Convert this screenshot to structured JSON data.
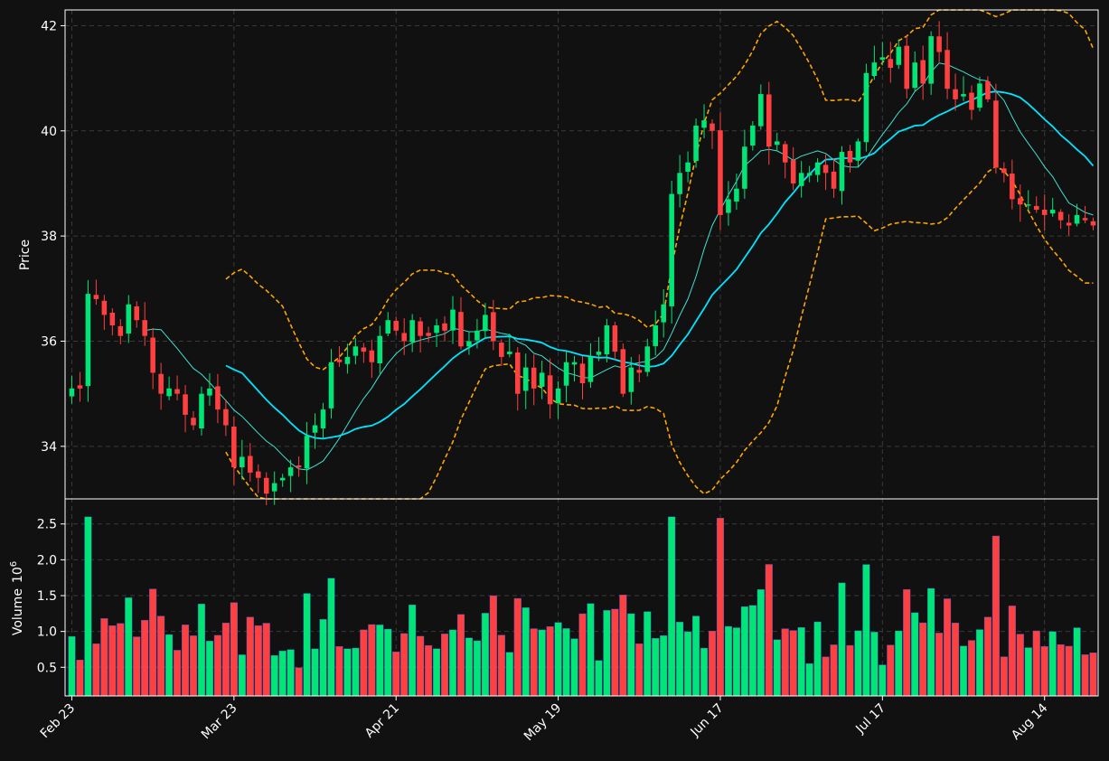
{
  "chart_data": {
    "type": "candlestick",
    "colors": {
      "background": "#111111",
      "up": "#00e676",
      "down": "#ff4040",
      "ma_fast": "#40e0d0",
      "ma_slow": "#00e5ff",
      "bollinger": "#ffa500",
      "grid": "#3a3a3a",
      "text": "#ffffff"
    },
    "price_axis": {
      "label": "Price",
      "ylim": [
        33.0,
        42.3
      ],
      "ticks": [
        "34",
        "36",
        "38",
        "40",
        "42"
      ],
      "tick_values": [
        34,
        36,
        38,
        40,
        42
      ]
    },
    "volume_axis": {
      "label": "Volume",
      "exponent_label": "10",
      "exponent": "6",
      "ylim": [
        0.1,
        2.85
      ],
      "ticks": [
        "0.5",
        "1.0",
        "1.5",
        "2.0",
        "2.5"
      ],
      "tick_values": [
        0.5,
        1.0,
        1.5,
        2.0,
        2.5
      ]
    },
    "x_tick_labels": [
      "Feb 23",
      "Mar 23",
      "Apr 21",
      "May 19",
      "Jun 17",
      "Jul 17",
      "Aug 14"
    ],
    "x_tick_index": [
      0,
      20,
      40,
      60,
      80,
      100,
      120
    ],
    "closes": [
      35.1,
      35.1,
      36.9,
      36.8,
      36.5,
      36.3,
      36.1,
      36.7,
      36.4,
      36.1,
      35.4,
      35.0,
      35.1,
      35.0,
      34.6,
      34.4,
      35.0,
      35.1,
      34.7,
      34.4,
      33.6,
      33.8,
      33.5,
      33.4,
      33.1,
      33.3,
      33.4,
      33.6,
      33.6,
      34.2,
      34.4,
      34.7,
      35.6,
      35.6,
      35.7,
      35.9,
      35.8,
      35.6,
      36.1,
      36.4,
      36.2,
      36.0,
      36.4,
      36.1,
      36.1,
      36.3,
      36.2,
      36.6,
      35.9,
      36.0,
      36.2,
      36.5,
      36.0,
      35.7,
      35.8,
      35.0,
      35.5,
      35.1,
      35.4,
      34.8,
      35.1,
      35.6,
      35.6,
      35.2,
      35.7,
      35.8,
      36.3,
      35.8,
      35.0,
      35.5,
      35.4,
      35.9,
      36.3,
      36.7,
      38.8,
      39.2,
      39.4,
      40.1,
      40.2,
      40.0,
      38.4,
      38.7,
      38.9,
      39.7,
      40.1,
      40.7,
      39.7,
      39.8,
      39.4,
      39.0,
      39.2,
      39.2,
      39.4,
      39.2,
      38.9,
      39.6,
      39.4,
      39.8,
      41.1,
      41.3,
      41.4,
      41.2,
      41.6,
      40.8,
      41.3,
      40.9,
      41.8,
      41.5,
      40.8,
      40.6,
      40.7,
      40.4,
      40.9,
      40.6,
      39.3,
      39.2,
      38.7,
      38.6,
      38.6,
      38.5,
      38.4,
      38.5,
      38.3,
      38.2,
      38.4,
      38.3,
      38.2
    ]
  }
}
